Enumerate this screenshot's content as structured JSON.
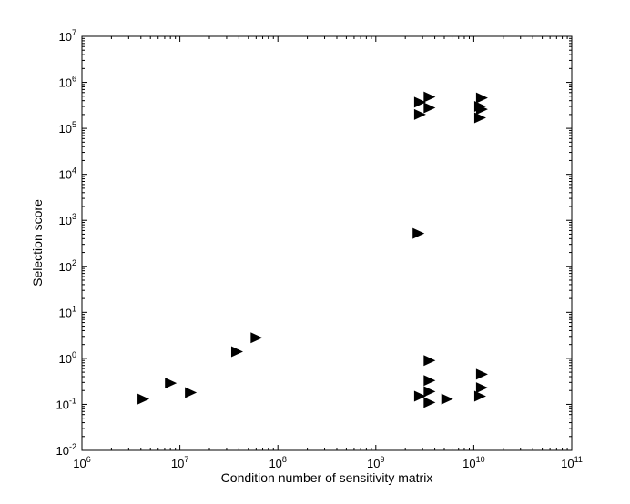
{
  "chart_data": {
    "type": "scatter",
    "title": "",
    "xlabel": "Condition number of sensitivity matrix",
    "ylabel": "Selection score",
    "xscale": "log",
    "yscale": "log",
    "xlim": [
      1000000.0,
      100000000000.0
    ],
    "ylim": [
      0.01,
      10000000.0
    ],
    "grid": false,
    "legend": "none",
    "marker": "right-pointing-triangle",
    "marker_color": "#000000",
    "x_ticks": [
      {
        "base": "10",
        "exp": "6"
      },
      {
        "base": "10",
        "exp": "7"
      },
      {
        "base": "10",
        "exp": "8"
      },
      {
        "base": "10",
        "exp": "9"
      },
      {
        "base": "10",
        "exp": "10"
      },
      {
        "base": "10",
        "exp": "11"
      }
    ],
    "y_ticks": [
      {
        "base": "10",
        "exp": "-2"
      },
      {
        "base": "10",
        "exp": "-1"
      },
      {
        "base": "10",
        "exp": "0"
      },
      {
        "base": "10",
        "exp": "1"
      },
      {
        "base": "10",
        "exp": "2"
      },
      {
        "base": "10",
        "exp": "3"
      },
      {
        "base": "10",
        "exp": "4"
      },
      {
        "base": "10",
        "exp": "5"
      },
      {
        "base": "10",
        "exp": "6"
      },
      {
        "base": "10",
        "exp": "7"
      }
    ],
    "points": [
      {
        "x": 4200000.0,
        "y": 0.13
      },
      {
        "x": 8000000.0,
        "y": 0.29
      },
      {
        "x": 12800000.0,
        "y": 0.18
      },
      {
        "x": 38000000.0,
        "y": 1.4
      },
      {
        "x": 60000000.0,
        "y": 2.8
      },
      {
        "x": 2700000000.0,
        "y": 520
      },
      {
        "x": 2800000000.0,
        "y": 370000.0
      },
      {
        "x": 2800000000.0,
        "y": 200000.0
      },
      {
        "x": 3500000000.0,
        "y": 480000.0
      },
      {
        "x": 3500000000.0,
        "y": 280000.0
      },
      {
        "x": 2800000000.0,
        "y": 0.15
      },
      {
        "x": 3500000000.0,
        "y": 0.9
      },
      {
        "x": 3500000000.0,
        "y": 0.33
      },
      {
        "x": 3500000000.0,
        "y": 0.19
      },
      {
        "x": 3500000000.0,
        "y": 0.11
      },
      {
        "x": 5300000000.0,
        "y": 0.13
      },
      {
        "x": 12000000000.0,
        "y": 460000.0
      },
      {
        "x": 11500000000.0,
        "y": 300000.0
      },
      {
        "x": 12000000000.0,
        "y": 260000.0
      },
      {
        "x": 11500000000.0,
        "y": 170000.0
      },
      {
        "x": 12000000000.0,
        "y": 0.45
      },
      {
        "x": 12000000000.0,
        "y": 0.23
      },
      {
        "x": 11500000000.0,
        "y": 0.15
      }
    ]
  }
}
